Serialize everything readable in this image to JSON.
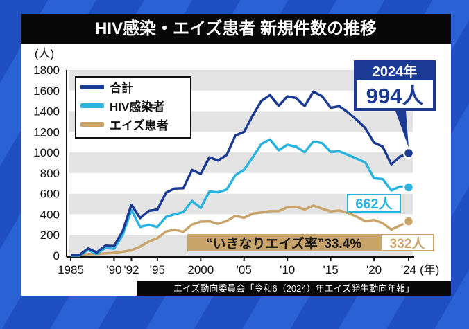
{
  "title": "HIV感染・エイズ患者 新規件数の推移",
  "source": "エイズ動向委員会「令和6（2024）年エイズ発生動向年報」",
  "colors": {
    "total": "#1a3a93",
    "hiv": "#2bb3e0",
    "aids": "#c9a46a",
    "band": "#e3e3e3"
  },
  "chart_data": {
    "type": "line",
    "ylabel": "(人)",
    "xlabel": "(年)",
    "ylim": [
      0,
      1800
    ],
    "yticks": [
      0,
      200,
      400,
      600,
      800,
      1000,
      1200,
      1400,
      1600,
      1800
    ],
    "xticks": [
      {
        "year": 1985,
        "label": "1985"
      },
      {
        "year": 1990,
        "label": "'90"
      },
      {
        "year": 1992,
        "label": "'92"
      },
      {
        "year": 1995,
        "label": "'95"
      },
      {
        "year": 2000,
        "label": "2000"
      },
      {
        "year": 2005,
        "label": "'05"
      },
      {
        "year": 2010,
        "label": "'10"
      },
      {
        "year": 2015,
        "label": "'15"
      },
      {
        "year": 2020,
        "label": "'20"
      },
      {
        "year": 2024,
        "label": "'24"
      }
    ],
    "grid": "alternating horizontal bands",
    "legend_position": "top-left",
    "x": [
      1985,
      1986,
      1987,
      1988,
      1989,
      1990,
      1991,
      1992,
      1993,
      1994,
      1995,
      1996,
      1997,
      1998,
      1999,
      2000,
      2001,
      2002,
      2003,
      2004,
      2005,
      2006,
      2007,
      2008,
      2009,
      2010,
      2011,
      2012,
      2013,
      2014,
      2015,
      2016,
      2017,
      2018,
      2019,
      2020,
      2021,
      2022,
      2023,
      2024
    ],
    "series": [
      {
        "name": "合計",
        "key": "total",
        "values": [
          6,
          5,
          69,
          31,
          96,
          92,
          238,
          493,
          363,
          433,
          446,
          610,
          650,
          653,
          831,
          791,
          953,
          922,
          976,
          1165,
          1199,
          1358,
          1500,
          1557,
          1452,
          1544,
          1529,
          1449,
          1590,
          1546,
          1434,
          1448,
          1389,
          1317,
          1236,
          1095,
          1057,
          884,
          960,
          994
        ]
      },
      {
        "name": "HIV感染者",
        "key": "hiv",
        "values": [
          0,
          0,
          55,
          17,
          75,
          66,
          200,
          442,
          277,
          298,
          277,
          376,
          400,
          422,
          530,
          462,
          621,
          614,
          640,
          780,
          832,
          952,
          1082,
          1126,
          1021,
          1075,
          1056,
          1002,
          1106,
          1091,
          1006,
          1011,
          976,
          940,
          903,
          750,
          742,
          632,
          669,
          662
        ]
      },
      {
        "name": "エイズ患者",
        "key": "aids",
        "values": [
          6,
          5,
          14,
          14,
          21,
          26,
          38,
          51,
          86,
          135,
          169,
          234,
          250,
          231,
          301,
          329,
          332,
          308,
          336,
          385,
          367,
          406,
          418,
          431,
          431,
          469,
          473,
          447,
          484,
          455,
          428,
          437,
          413,
          377,
          333,
          345,
          315,
          252,
          291,
          332
        ]
      }
    ],
    "annotations": {
      "total_year": "2024年",
      "total_value": "994人",
      "hiv_value": "662人",
      "aids_rate": "“いきなりエイズ率”33.4%",
      "aids_value": "332人"
    }
  }
}
